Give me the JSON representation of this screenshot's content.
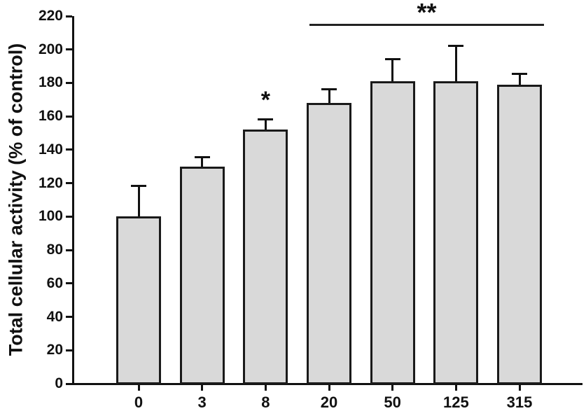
{
  "figure": {
    "background": "#ffffff"
  },
  "chart_data": {
    "type": "bar",
    "title": "",
    "xlabel": "",
    "ylabel": "Total cellular activity (% of control)",
    "categories": [
      "0",
      "3",
      "8",
      "20",
      "50",
      "125",
      "315"
    ],
    "values": [
      100,
      130,
      152,
      168,
      181,
      181,
      179
    ],
    "errors": [
      19,
      6,
      7,
      9,
      14,
      22,
      7
    ],
    "ylim": [
      0,
      220
    ],
    "ytick_step": 20,
    "grid": false,
    "legend": null,
    "bar_fill": "#d9d9d9",
    "bar_border": "#1a1a1a",
    "axis_color": "#111111",
    "annotations": [
      {
        "type": "asterisk",
        "label": "*",
        "category": "8"
      },
      {
        "type": "bracket",
        "label": "**",
        "from_category": "20",
        "to_category": "315"
      }
    ]
  }
}
